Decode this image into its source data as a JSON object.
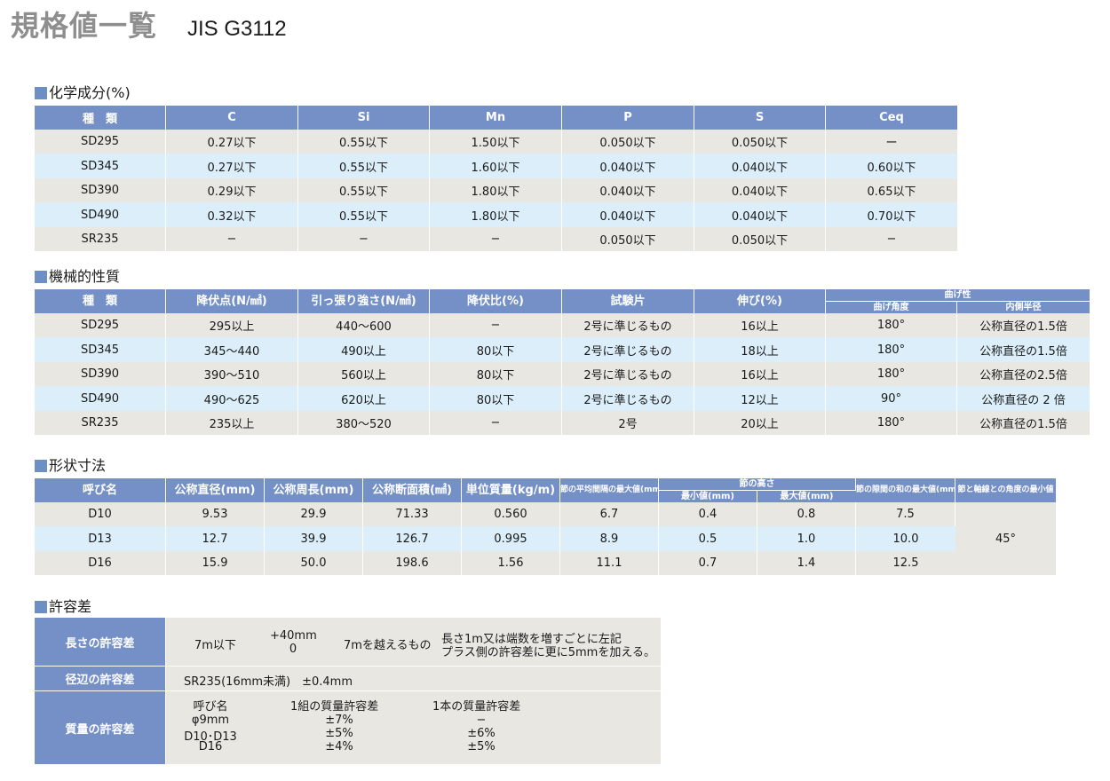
{
  "title": {
    "main": "規格値一覧",
    "sub": "JIS G3112"
  },
  "sections": {
    "chemical": "化学成分(%)",
    "mechanical": "機械的性質",
    "shape": "形状寸法",
    "tolerance": "許容差"
  },
  "chemical": {
    "headers": [
      "種　類",
      "C",
      "Si",
      "Mn",
      "P",
      "S",
      "Ceq"
    ],
    "rows": [
      [
        "SD295",
        "0.27以下",
        "0.55以下",
        "1.50以下",
        "0.050以下",
        "0.050以下",
        "ー"
      ],
      [
        "SD345",
        "0.27以下",
        "0.55以下",
        "1.60以下",
        "0.040以下",
        "0.040以下",
        "0.60以下"
      ],
      [
        "SD390",
        "0.29以下",
        "0.55以下",
        "1.80以下",
        "0.040以下",
        "0.040以下",
        "0.65以下"
      ],
      [
        "SD490",
        "0.32以下",
        "0.55以下",
        "1.80以下",
        "0.040以下",
        "0.040以下",
        "0.70以下"
      ],
      [
        "SR235",
        "−",
        "−",
        "−",
        "0.050以下",
        "0.050以下",
        "−"
      ]
    ]
  },
  "mechanical": {
    "headers": [
      "種　類",
      "降伏点(N/㎟)",
      "引っ張り強さ(N/㎟)",
      "降伏比(%)",
      "試験片",
      "伸び(%)"
    ],
    "bend_group": "曲げ性",
    "bend_sub": [
      "曲げ角度",
      "内側半径"
    ],
    "rows": [
      [
        "SD295",
        "295以上",
        "440〜600",
        "−",
        "2号に準じるもの",
        "16以上",
        "180°",
        "公称直径の1.5倍"
      ],
      [
        "SD345",
        "345〜440",
        "490以上",
        "80以下",
        "2号に準じるもの",
        "18以上",
        "180°",
        "公称直径の1.5倍"
      ],
      [
        "SD390",
        "390〜510",
        "560以上",
        "80以下",
        "2号に準じるもの",
        "16以上",
        "180°",
        "公称直径の2.5倍"
      ],
      [
        "SD490",
        "490〜625",
        "620以上",
        "80以下",
        "2号に準じるもの",
        "12以上",
        "90°",
        "公称直径の 2 倍"
      ],
      [
        "SR235",
        "235以上",
        "380〜520",
        "−",
        "2号",
        "20以上",
        "180°",
        "公称直径の1.5倍"
      ]
    ]
  },
  "shape": {
    "headers": [
      "呼び名",
      "公称直径(mm)",
      "公称周長(mm)",
      "公称断面積(㎟)",
      "単位質量(kg/m)",
      "節の平均間隔の最大値(mm)"
    ],
    "height_group": "節の高さ",
    "height_sub": [
      "最小値(mm)",
      "最大値(mm)"
    ],
    "header_gap": "節の隙間の和の最大値(mm)",
    "header_angle": "節と軸線との角度の最小値",
    "angle_value": "45°",
    "rows": [
      [
        "D10",
        "9.53",
        "29.9",
        "71.33",
        "0.560",
        "6.7",
        "0.4",
        "0.8",
        "7.5"
      ],
      [
        "D13",
        "12.7",
        "39.9",
        "126.7",
        "0.995",
        "8.9",
        "0.5",
        "1.0",
        "10.0"
      ],
      [
        "D16",
        "15.9",
        "50.0",
        "198.6",
        "1.56",
        "11.1",
        "0.7",
        "1.4",
        "12.5"
      ]
    ]
  },
  "tolerance": {
    "length": {
      "label": "長さの許容差",
      "under": "7m以下",
      "plus": "+40mm",
      "minus": "0",
      "over": "7mを越えるもの",
      "note1": "長さ1m又は端数を増すごとに左記",
      "note2": "プラス側の許容差に更に5mmを加える。"
    },
    "diameter": {
      "label": "径辺の許容差",
      "value": "SR235(16mm未満)　±0.4mm"
    },
    "mass": {
      "label": "質量の許容差",
      "h_name": "呼び名",
      "h_set": "1組の質量許容差",
      "h_one": "1本の質量許容差",
      "rows": [
        [
          "φ9mm",
          "±7%",
          "−"
        ],
        [
          "D10･D13",
          "±5%",
          "±6%"
        ],
        [
          "D16",
          "±4%",
          "±5%"
        ]
      ]
    }
  }
}
